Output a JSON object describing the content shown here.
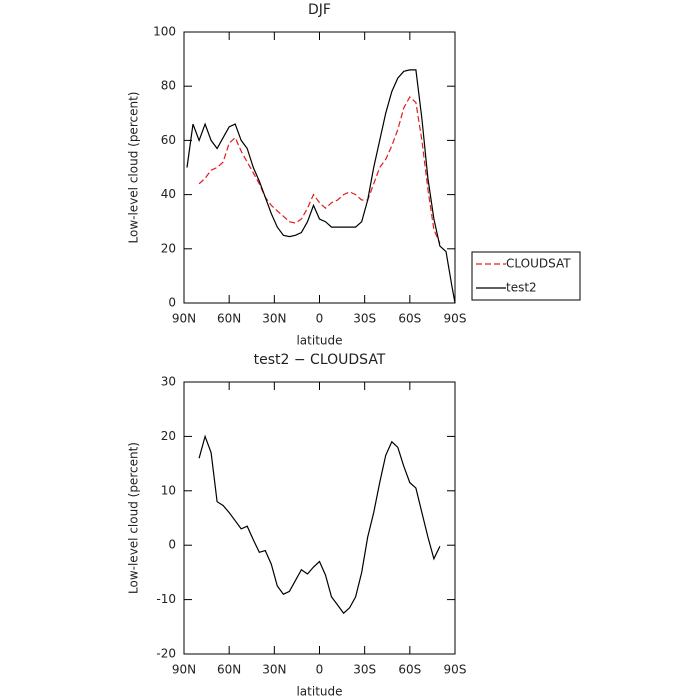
{
  "chart_data": [
    {
      "type": "line",
      "title": "DJF",
      "xlabel": "latitude",
      "ylabel": "Low-level cloud (percent)",
      "x": [
        88,
        84,
        80,
        76,
        72,
        68,
        64,
        60,
        56,
        52,
        48,
        44,
        40,
        36,
        32,
        28,
        24,
        20,
        16,
        12,
        8,
        4,
        0,
        -4,
        -8,
        -12,
        -16,
        -20,
        -24,
        -28,
        -32,
        -36,
        -40,
        -44,
        -48,
        -52,
        -56,
        -60,
        -64,
        -68,
        -72,
        -76,
        -80,
        -84,
        -88,
        -90
      ],
      "series": [
        {
          "name": "CLOUDSAT",
          "color": "#e41a1c",
          "dash": "dashed",
          "values": [
            null,
            null,
            44,
            46,
            49,
            50,
            52,
            59,
            61,
            56,
            52,
            48,
            44,
            39,
            36,
            34,
            32,
            30,
            29.5,
            31,
            35,
            40,
            37,
            35,
            37,
            38,
            40,
            41,
            40,
            38,
            38,
            44,
            50,
            53,
            58,
            64,
            72,
            76,
            74,
            60,
            42,
            27,
            22,
            null,
            null,
            null
          ]
        },
        {
          "name": "test2",
          "color": "#000000",
          "dash": "solid",
          "values": [
            50,
            66,
            60,
            66,
            60,
            57,
            61,
            65,
            66,
            60,
            57,
            50,
            45,
            39,
            33,
            28,
            25,
            24.5,
            25,
            26,
            30,
            36,
            31,
            30,
            28,
            28,
            28,
            28,
            28,
            30,
            38,
            50,
            60,
            70,
            78,
            83,
            85.5,
            86,
            86,
            68,
            46,
            31,
            21,
            19,
            6,
            0
          ]
        }
      ],
      "xlim": [
        90,
        -90
      ],
      "ylim": [
        0,
        100
      ],
      "xticks": [
        {
          "value": 90,
          "label": "90N"
        },
        {
          "value": 60,
          "label": "60N"
        },
        {
          "value": 30,
          "label": "30N"
        },
        0,
        {
          "value": -30,
          "label": "30S"
        },
        {
          "value": -60,
          "label": "60S"
        },
        {
          "value": -90,
          "label": "90S"
        }
      ],
      "yticks": [
        0,
        20,
        40,
        60,
        80,
        100
      ],
      "legend": "outside-right"
    },
    {
      "type": "line",
      "title": "test2 − CLOUDSAT",
      "xlabel": "latitude",
      "ylabel": "Low-level cloud (percent)",
      "x": [
        80,
        76,
        72,
        68,
        64,
        60,
        56,
        52,
        48,
        44,
        40,
        36,
        32,
        28,
        24,
        20,
        16,
        12,
        8,
        4,
        0,
        -4,
        -8,
        -12,
        -16,
        -20,
        -24,
        -28,
        -32,
        -36,
        -40,
        -44,
        -48,
        -52,
        -56,
        -60,
        -64,
        -68,
        -72,
        -76,
        -80
      ],
      "series": [
        {
          "color": "#000000",
          "dash": "solid",
          "values": [
            16,
            20,
            17,
            8,
            7.3,
            6,
            4.5,
            3,
            3.5,
            1,
            -1.3,
            -1,
            -3.5,
            -7.5,
            -9,
            -8.5,
            -6.5,
            -4.5,
            -5.3,
            -4,
            -3,
            -5.5,
            -9.5,
            -11,
            -12.5,
            -11.5,
            -9.5,
            -5,
            1.5,
            6,
            11.5,
            16.5,
            19,
            18,
            14.5,
            11.5,
            10.5,
            6,
            1.5,
            -2.5,
            -0.2
          ]
        }
      ],
      "xlim": [
        90,
        -90
      ],
      "ylim": [
        -20,
        30
      ],
      "xticks": [
        {
          "value": 90,
          "label": "90N"
        },
        {
          "value": 60,
          "label": "60N"
        },
        {
          "value": 30,
          "label": "30N"
        },
        0,
        {
          "value": -30,
          "label": "30S"
        },
        {
          "value": -60,
          "label": "60S"
        },
        {
          "value": -90,
          "label": "90S"
        }
      ],
      "yticks": [
        -20,
        -10,
        0,
        10,
        20,
        30
      ]
    }
  ]
}
